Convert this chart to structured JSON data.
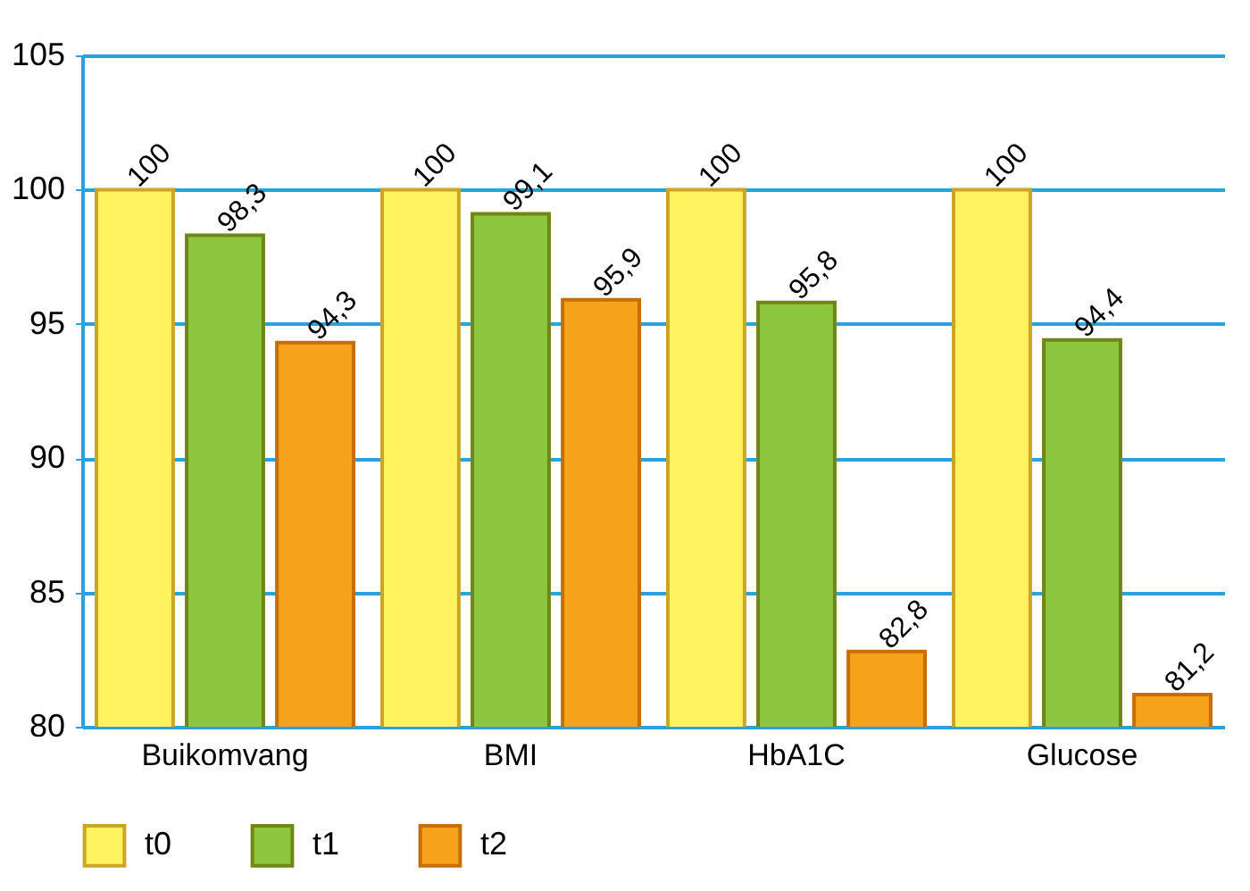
{
  "chart_data": {
    "type": "bar",
    "categories": [
      "Buikomvang",
      "BMI",
      "HbA1C",
      "Glucose"
    ],
    "series": [
      {
        "name": "t0",
        "color": "#fff35f",
        "values": [
          100,
          100,
          100,
          100
        ],
        "value_labels": [
          "100",
          "100",
          "100",
          "100"
        ]
      },
      {
        "name": "t1",
        "color": "#8dc63f",
        "values": [
          98.3,
          99.1,
          95.8,
          94.4
        ],
        "value_labels": [
          "98,3",
          "99,1",
          "95,8",
          "94,4"
        ]
      },
      {
        "name": "t2",
        "color": "#f7a21b",
        "values": [
          94.3,
          95.9,
          82.8,
          81.2
        ],
        "value_labels": [
          "94,3",
          "95,9",
          "82,8",
          "81,2"
        ]
      }
    ],
    "ylim": [
      80,
      105
    ],
    "yticks": [
      80,
      85,
      90,
      95,
      100,
      105
    ],
    "grid": "y",
    "legend": "bottom"
  }
}
